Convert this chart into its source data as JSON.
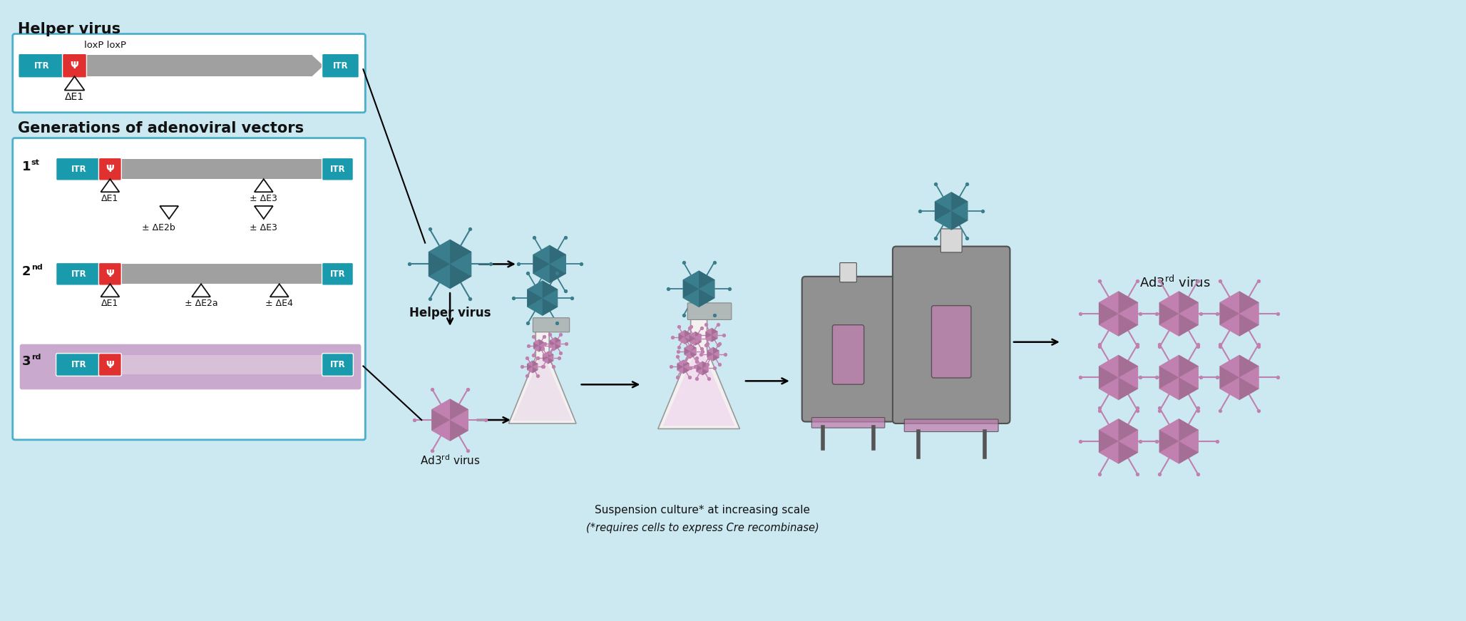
{
  "bg_color": "#cce8f0",
  "title_helper": "Helper virus",
  "title_gen": "Generations of adenoviral vectors",
  "itr_color": "#1a9aad",
  "psi_color": "#e03030",
  "genome_color": "#a0a0a0",
  "third_gen_color": "#c4a0c8",
  "box_border_color": "#4ab0cc",
  "hv_color": "#3a7d8c",
  "hv_dark": "#2a5d6c",
  "ad3_color": "#c080b0",
  "ad3_dark": "#906080",
  "text_color": "#111111",
  "label_helper_virus": "Helper virus",
  "label_ad3rd": "Ad3",
  "label_suspension1": "Suspension culture* at increasing scale",
  "label_suspension2": "(*requires cells to express Cre recombinase)",
  "label_product": "Ad3",
  "fig_w": 20.56,
  "fig_h": 8.71
}
